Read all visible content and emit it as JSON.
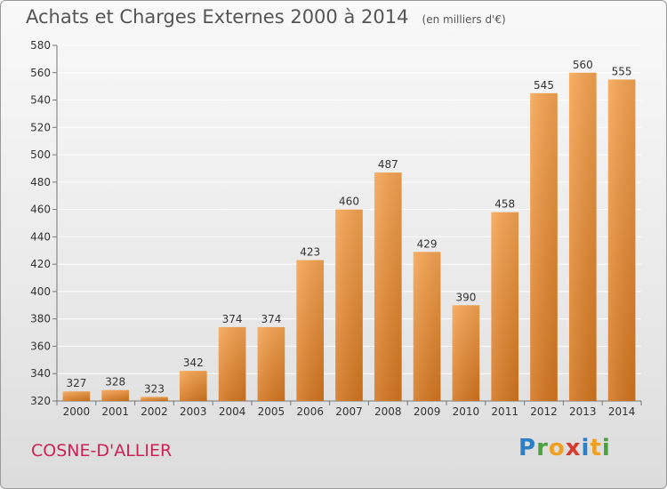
{
  "title": "Achats et Charges Externes 2000 à 2014",
  "unit_note": "(en milliers d'€)",
  "location": "COSNE-D'ALLIER",
  "logo_text": "Proxiti",
  "colors": {
    "bar_light": "#f6a552",
    "bar_dark": "#d4761f",
    "grid": "#ffffff",
    "location": "#cc2255"
  },
  "chart_data": {
    "type": "bar",
    "title": "Achats et Charges Externes 2000 à 2014",
    "subtitle": "(en milliers d'€)",
    "xlabel": "",
    "ylabel": "",
    "categories": [
      "2000",
      "2001",
      "2002",
      "2003",
      "2004",
      "2005",
      "2006",
      "2007",
      "2008",
      "2009",
      "2010",
      "2011",
      "2012",
      "2013",
      "2014"
    ],
    "values": [
      327,
      328,
      323,
      342,
      374,
      374,
      423,
      460,
      487,
      429,
      390,
      458,
      545,
      560,
      555
    ],
    "ylim": [
      320,
      580
    ],
    "yticks": [
      320,
      340,
      360,
      380,
      400,
      420,
      440,
      460,
      480,
      500,
      520,
      540,
      560,
      580
    ],
    "grid": true,
    "data_labels": true,
    "legend": "none"
  }
}
